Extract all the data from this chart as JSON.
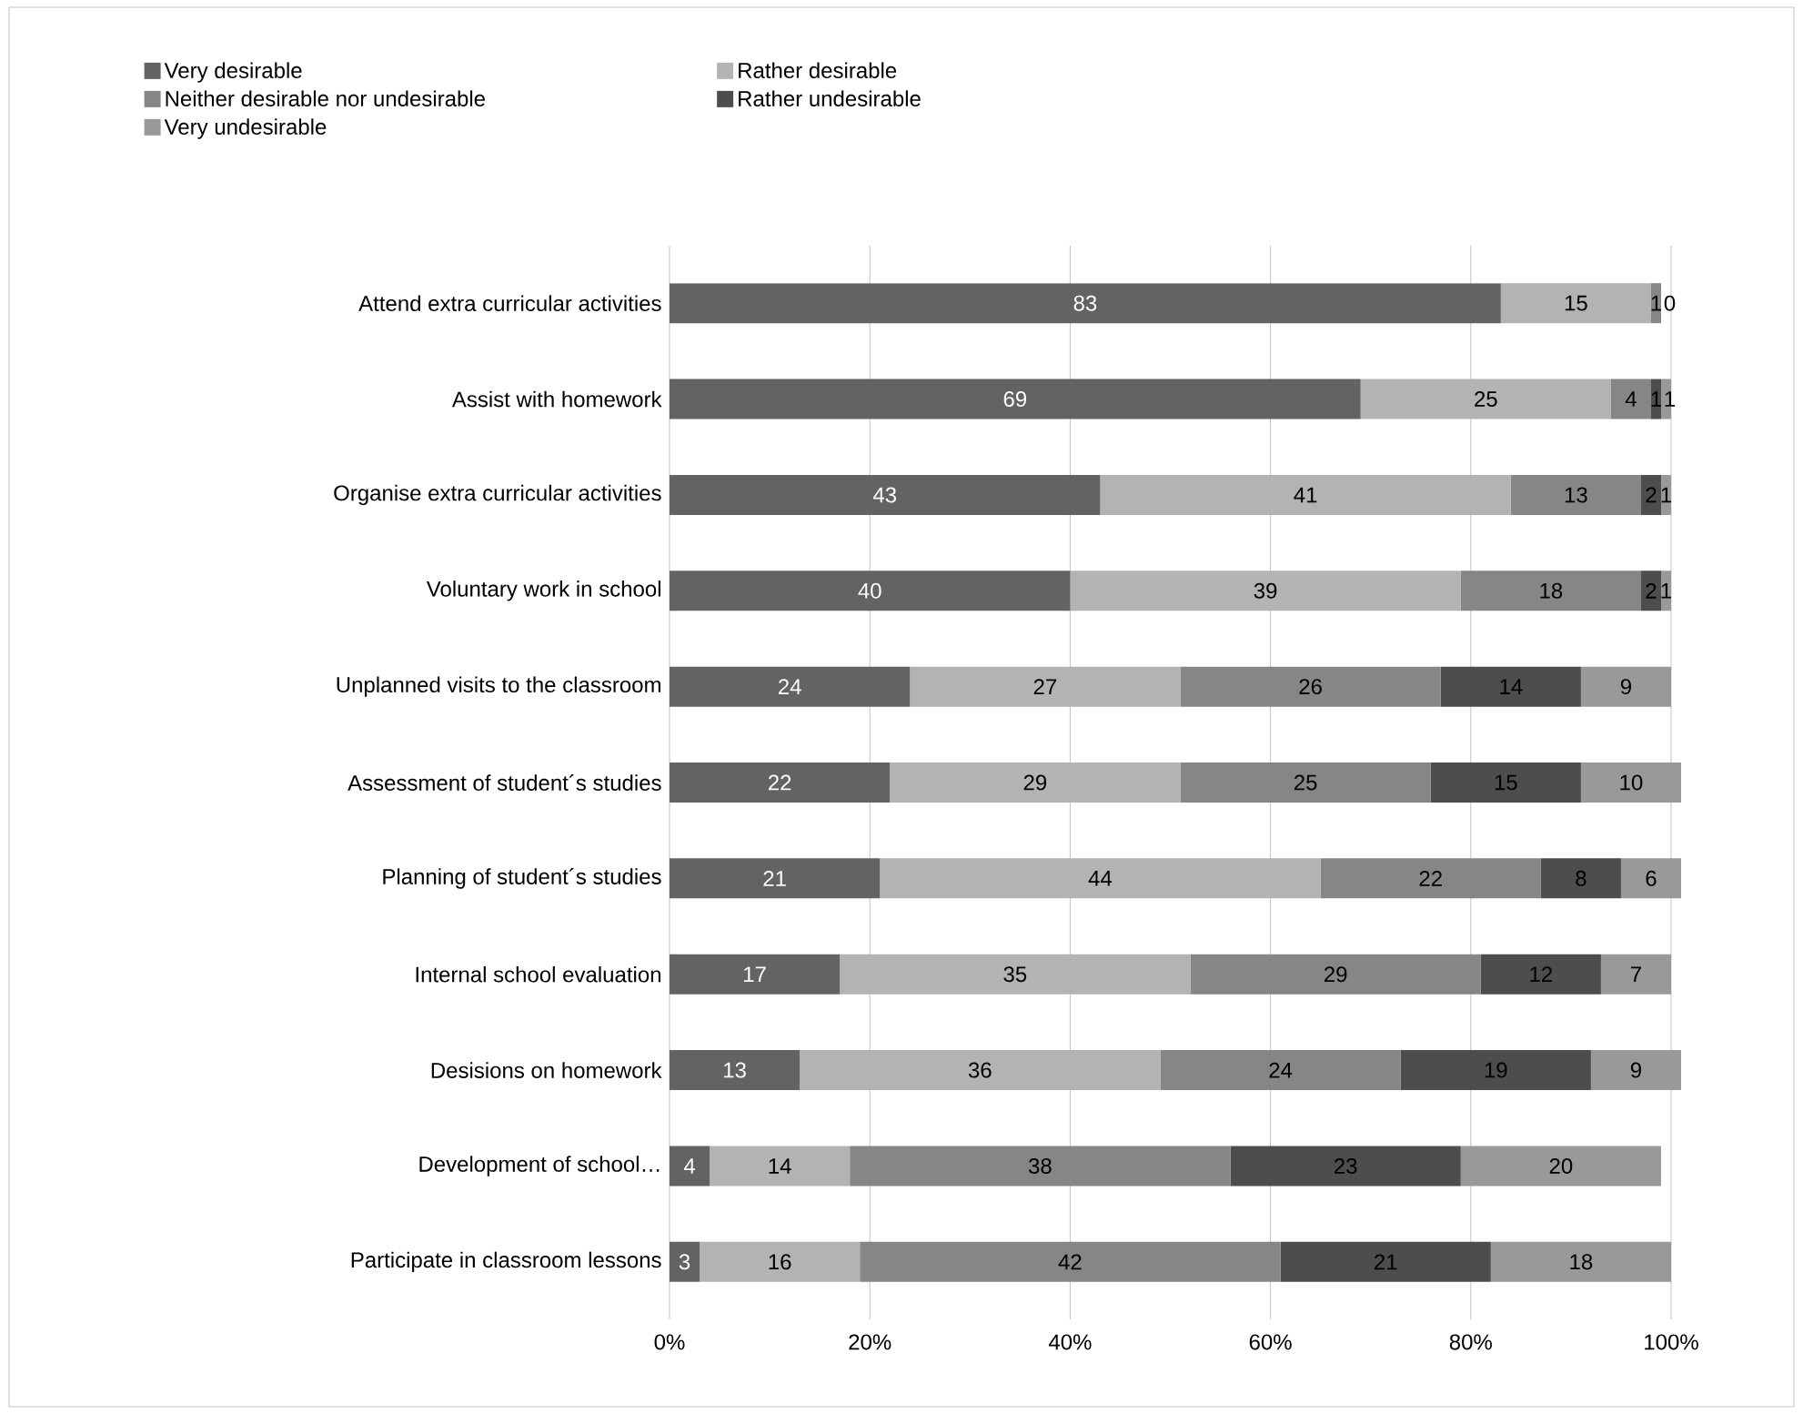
{
  "chart_data": {
    "type": "bar",
    "orientation": "horizontal",
    "stacked": true,
    "data_labels": true,
    "grid": "x",
    "legend": "top",
    "categories": [
      "Attend extra curricular activities",
      "Assist with homework",
      "Organise extra curricular activities",
      "Voluntary work in school",
      "Unplanned visits to the classroom",
      "Assessment of student´s studies",
      "Planning of student´s studies",
      "Internal school evaluation",
      "Desisions on homework",
      "Development of school…",
      "Participate in classroom lessons"
    ],
    "series": [
      {
        "name": "Very desirable",
        "color": "#636363",
        "values": [
          83,
          69,
          43,
          40,
          24,
          22,
          21,
          17,
          13,
          4,
          3
        ]
      },
      {
        "name": "Rather desirable",
        "color": "#b3b3b3",
        "values": [
          15,
          25,
          41,
          39,
          27,
          29,
          44,
          35,
          36,
          14,
          16
        ]
      },
      {
        "name": "Neither desirable nor undesirable",
        "color": "#868686",
        "values": [
          1,
          4,
          13,
          18,
          26,
          25,
          22,
          29,
          24,
          38,
          42
        ]
      },
      {
        "name": "Rather undesirable",
        "color": "#4d4d4d",
        "values": [
          0,
          1,
          2,
          2,
          14,
          15,
          8,
          12,
          19,
          23,
          21
        ]
      },
      {
        "name": "Very undesirable",
        "color": "#999999",
        "values": [
          null,
          1,
          1,
          1,
          9,
          10,
          6,
          7,
          9,
          20,
          18
        ]
      }
    ],
    "xlim": [
      0,
      101
    ],
    "xticks": [
      {
        "value": 0,
        "label": "0%"
      },
      {
        "value": 20,
        "label": "20%"
      },
      {
        "value": 40,
        "label": "40%"
      },
      {
        "value": 60,
        "label": "60%"
      },
      {
        "value": 80,
        "label": "80%"
      },
      {
        "value": 100,
        "label": "100%"
      }
    ]
  }
}
